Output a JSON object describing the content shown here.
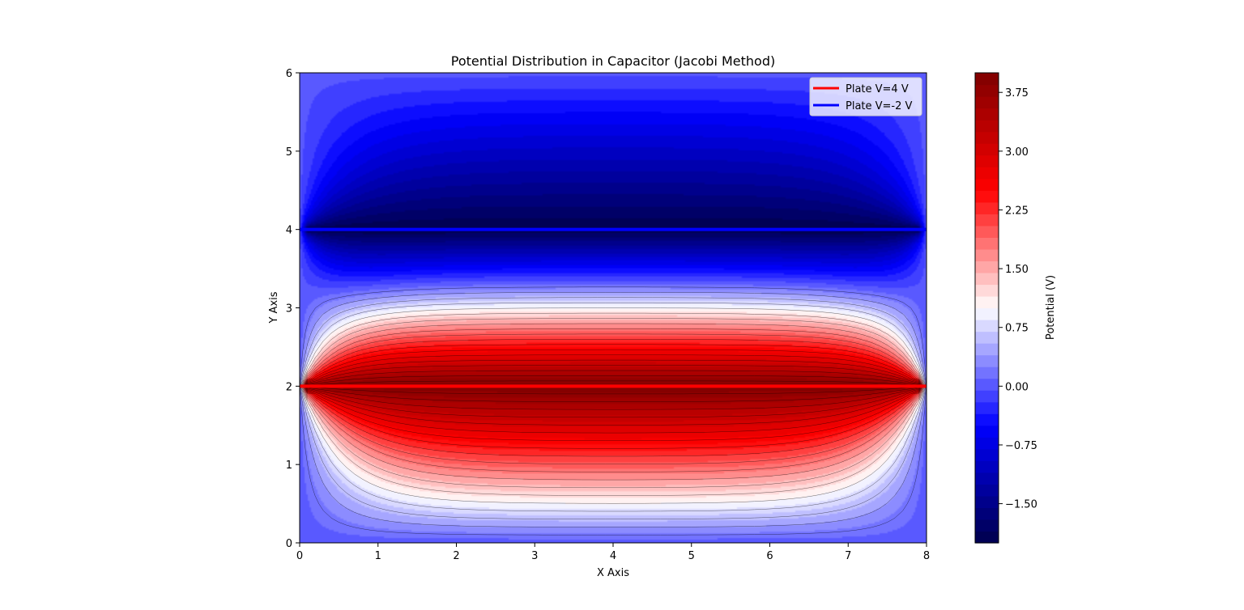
{
  "chart_data": {
    "type": "heatmap",
    "title": "Potential Distribution in Capacitor (Jacobi Method)",
    "xlabel": "X Axis",
    "ylabel": "Y Axis",
    "xlim": [
      0,
      8
    ],
    "ylim": [
      0,
      6
    ],
    "x_ticks": [
      "0",
      "1",
      "2",
      "3",
      "4",
      "5",
      "6",
      "7",
      "8"
    ],
    "y_ticks": [
      "0",
      "1",
      "2",
      "3",
      "4",
      "5",
      "6"
    ],
    "grid": false,
    "colormap": "seismic",
    "vmin": -2.0,
    "vmax": 4.0,
    "boundary_potential": 0,
    "plates": [
      {
        "name": "Plate V=4 V",
        "potential": 4,
        "y": 2,
        "x_range": [
          0,
          8
        ],
        "color": "#ff0000"
      },
      {
        "name": "Plate V=-2 V",
        "potential": -2,
        "y": 4,
        "x_range": [
          0,
          8
        ],
        "color": "#0000ff"
      }
    ],
    "legend": {
      "placement": "top-right",
      "entries": [
        {
          "label": "Plate V=4 V",
          "color": "#ff0000"
        },
        {
          "label": "Plate V=-2 V",
          "color": "#0000ff"
        }
      ]
    },
    "colorbar": {
      "label": "Potential (V)",
      "ticks": [
        "−1.50",
        "−0.75",
        "0.00",
        "0.75",
        "1.50",
        "2.25",
        "3.00",
        "3.75"
      ],
      "tick_values": [
        -1.5,
        -0.75,
        0.0,
        0.75,
        1.5,
        2.25,
        3.0,
        3.75
      ]
    }
  }
}
